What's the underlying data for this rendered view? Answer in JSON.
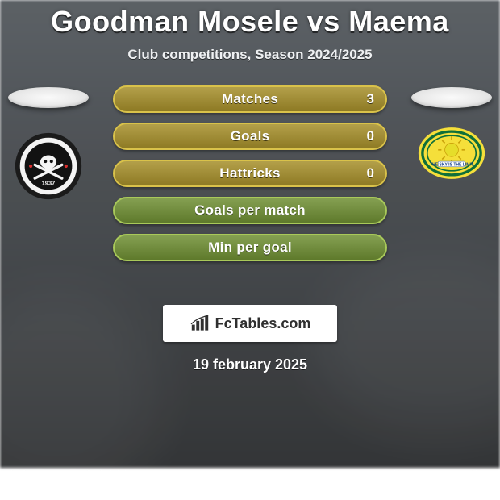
{
  "title": "Goodman Mosele vs Maema",
  "subtitle": "Club competitions, Season 2024/2025",
  "date": "19 february 2025",
  "branding": {
    "text": "FcTables.com"
  },
  "styling": {
    "title_color": "#ffffff",
    "title_fontsize": 36,
    "subtitle_fontsize": 17,
    "bar_label_fontsize": 17,
    "bar_value_fontsize": 17,
    "date_fontsize": 18,
    "text_shadow": "0 1px 0 rgba(0,0,0,0.6)",
    "background_gradient": [
      "#5a5f64",
      "#484c50",
      "#3c3f42",
      "#2f3133"
    ]
  },
  "colors": {
    "bar_olive_bg": "#a68f2a",
    "bar_olive_border": "#d9c24a",
    "bar_green_bg": "#6f8f33",
    "bar_green_border": "#a9c95a",
    "pill_bg": "#efefef",
    "branding_bg": "#ffffff",
    "branding_text": "#2f2f2f"
  },
  "bars": [
    {
      "label": "Matches",
      "left": "",
      "right": "3",
      "style": "olive"
    },
    {
      "label": "Goals",
      "left": "",
      "right": "0",
      "style": "olive"
    },
    {
      "label": "Hattricks",
      "left": "",
      "right": "0",
      "style": "olive"
    },
    {
      "label": "Goals per match",
      "left": "",
      "right": "",
      "style": "green"
    },
    {
      "label": "Min per goal",
      "left": "",
      "right": "",
      "style": "green"
    }
  ],
  "logos": {
    "left": {
      "name": "orlando-pirates",
      "outer": "#1b1b1b",
      "ring": "#f4f4f4",
      "inner": "#121212",
      "accent": "#d92e2e",
      "year": "1937"
    },
    "right": {
      "name": "mamelodi-sundowns",
      "outer": "#f5df3a",
      "ring": "#0f6f3a",
      "sun": "#e6dd2a",
      "text": "#0e3c8a"
    }
  }
}
